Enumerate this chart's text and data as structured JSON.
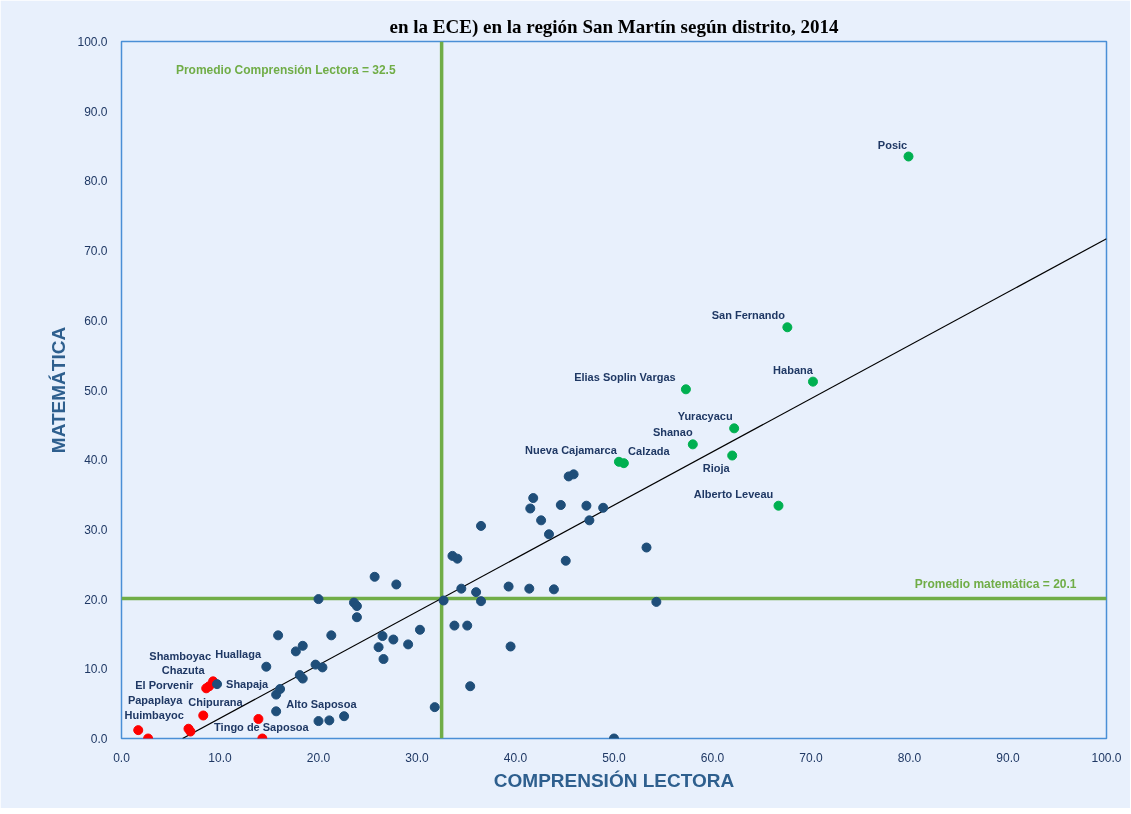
{
  "chart_data": {
    "type": "scatter",
    "title": "en la ECE) en la región San Martín según distrito, 2014",
    "xlabel": "COMPRENSIÓN LECTORA",
    "ylabel": "MATEMÁTICA",
    "xlim": [
      0,
      100
    ],
    "ylim": [
      0,
      100
    ],
    "xticks": [
      {
        "value": 0,
        "label": "0.0"
      },
      {
        "value": 10,
        "label": "10.0"
      },
      {
        "value": 20,
        "label": "20.0"
      },
      {
        "value": 30,
        "label": "30.0"
      },
      {
        "value": 40,
        "label": "40.0"
      },
      {
        "value": 50,
        "label": "50.0"
      },
      {
        "value": 60,
        "label": "60.0"
      },
      {
        "value": 70,
        "label": "70.0"
      },
      {
        "value": 80,
        "label": "80.0"
      },
      {
        "value": 90,
        "label": "90.0"
      },
      {
        "value": 100,
        "label": "100.0"
      }
    ],
    "yticks": [
      {
        "value": 0,
        "label": "0.0"
      },
      {
        "value": 10,
        "label": "10.0"
      },
      {
        "value": 20,
        "label": "20.0"
      },
      {
        "value": 30,
        "label": "30.0"
      },
      {
        "value": 40,
        "label": "40.0"
      },
      {
        "value": 50,
        "label": "50.0"
      },
      {
        "value": 60,
        "label": "60.0"
      },
      {
        "value": 70,
        "label": "70.0"
      },
      {
        "value": 80,
        "label": "80.0"
      },
      {
        "value": 90,
        "label": "90.0"
      },
      {
        "value": 100,
        "label": "100.0"
      }
    ],
    "grid": false,
    "marker": "circle",
    "series": [
      {
        "color": "#ff0000",
        "x": [
          1.7,
          2.7,
          6.8,
          7.0,
          8.3,
          8.6,
          8.9,
          9.3,
          13.9,
          14.3
        ],
        "values": [
          1.2,
          0,
          1.4,
          1.0,
          3.3,
          7.2,
          7.5,
          8.2,
          2.8,
          0
        ]
      },
      {
        "color": "#1f4e79",
        "x": [
          9.7,
          14.7,
          15.7,
          15.7,
          16.1,
          15.9,
          17.7,
          18.1,
          18.4,
          18.4,
          19.7,
          20.0,
          20.0,
          20.4,
          21.1,
          21.3,
          22.6,
          23.6,
          23.9,
          23.9,
          25.7,
          26.1,
          26.5,
          26.6,
          27.6,
          27.9,
          29.1,
          30.3,
          31.8,
          32.7,
          33.6,
          33.8,
          34.1,
          34.5,
          35.1,
          35.4,
          36.0,
          36.5,
          36.5,
          39.3,
          39.5,
          41.4,
          41.5,
          41.8,
          42.6,
          43.4,
          43.9,
          44.6,
          45.1,
          45.4,
          45.9,
          47.2,
          47.5,
          48.9,
          50.0,
          53.3,
          54.3
        ],
        "values": [
          7.8,
          10.3,
          3.9,
          6.3,
          7.1,
          14.8,
          12.5,
          9.1,
          8.6,
          13.3,
          10.6,
          2.5,
          20.0,
          10.2,
          2.6,
          14.8,
          3.2,
          19.5,
          19.0,
          17.4,
          23.2,
          13.1,
          14.7,
          11.4,
          14.2,
          22.1,
          13.5,
          15.6,
          4.5,
          19.8,
          26.2,
          16.2,
          25.8,
          21.5,
          16.2,
          7.5,
          21.0,
          30.5,
          19.7,
          21.8,
          13.2,
          21.5,
          33.0,
          34.5,
          31.3,
          29.3,
          21.4,
          33.5,
          25.5,
          37.6,
          37.9,
          33.4,
          31.3,
          33.1,
          0,
          27.4,
          19.6
        ]
      },
      {
        "color": "#00b050",
        "x": [
          50.5,
          51.0,
          57.3,
          58.0,
          62.0,
          62.2,
          66.7,
          67.6,
          70.2,
          79.9
        ],
        "values": [
          39.7,
          39.5,
          50.1,
          42.2,
          40.6,
          44.5,
          33.4,
          59.0,
          51.2,
          83.5
        ]
      },
      {
        "type": "line",
        "marker": "none",
        "color": "#000000",
        "x": [
          6.2,
          100
        ],
        "values": [
          0,
          71.7
        ]
      }
    ],
    "ref_lines": [
      {
        "axis": "x",
        "value": 32.5,
        "label": "Promedio Comprensión Lectora = 32.5",
        "color": "#70ad47"
      },
      {
        "axis": "y",
        "value": 20.1,
        "label": "Promedio matemática = 20.1",
        "color": "#70ad47"
      }
    ],
    "annotations": [
      {
        "text": "Posic",
        "x": 79.9,
        "y": 83.5
      },
      {
        "text": "San Fernando",
        "x": 67.6,
        "y": 59.0
      },
      {
        "text": "Habana",
        "x": 70.2,
        "y": 51.2
      },
      {
        "text": "Elias Soplin Vargas",
        "x": 57.3,
        "y": 50.1
      },
      {
        "text": "Yuracyacu",
        "x": 62.2,
        "y": 44.5
      },
      {
        "text": "Shanao",
        "x": 58.0,
        "y": 42.2
      },
      {
        "text": "Rioja",
        "x": 62.0,
        "y": 40.6
      },
      {
        "text": "Alberto Leveau",
        "x": 66.7,
        "y": 33.4
      },
      {
        "text": "Nueva Cajamarca",
        "x": 50.5,
        "y": 39.7
      },
      {
        "text": "Calzada",
        "x": 51.0,
        "y": 39.5
      },
      {
        "text": "Huimbayoc",
        "x": 1.7,
        "y": 1.2
      },
      {
        "text": "Papaplaya",
        "x": 2.7,
        "y": 0
      },
      {
        "text": "El Porvenir",
        "x": 8.3,
        "y": 3.3
      },
      {
        "text": "Chipurana",
        "x": 7.0,
        "y": 1.0
      },
      {
        "text": "Chazuta",
        "x": 8.6,
        "y": 7.2
      },
      {
        "text": "Shamboyac",
        "x": 8.9,
        "y": 7.5
      },
      {
        "text": "Huallaga",
        "x": 9.3,
        "y": 8.2
      },
      {
        "text": "Alto Saposoa",
        "x": 13.9,
        "y": 2.8
      },
      {
        "text": "Tingo de Saposoa",
        "x": 14.3,
        "y": 0
      },
      {
        "text": "Shapaja",
        "x": 15.7,
        "y": 3.9
      }
    ]
  }
}
